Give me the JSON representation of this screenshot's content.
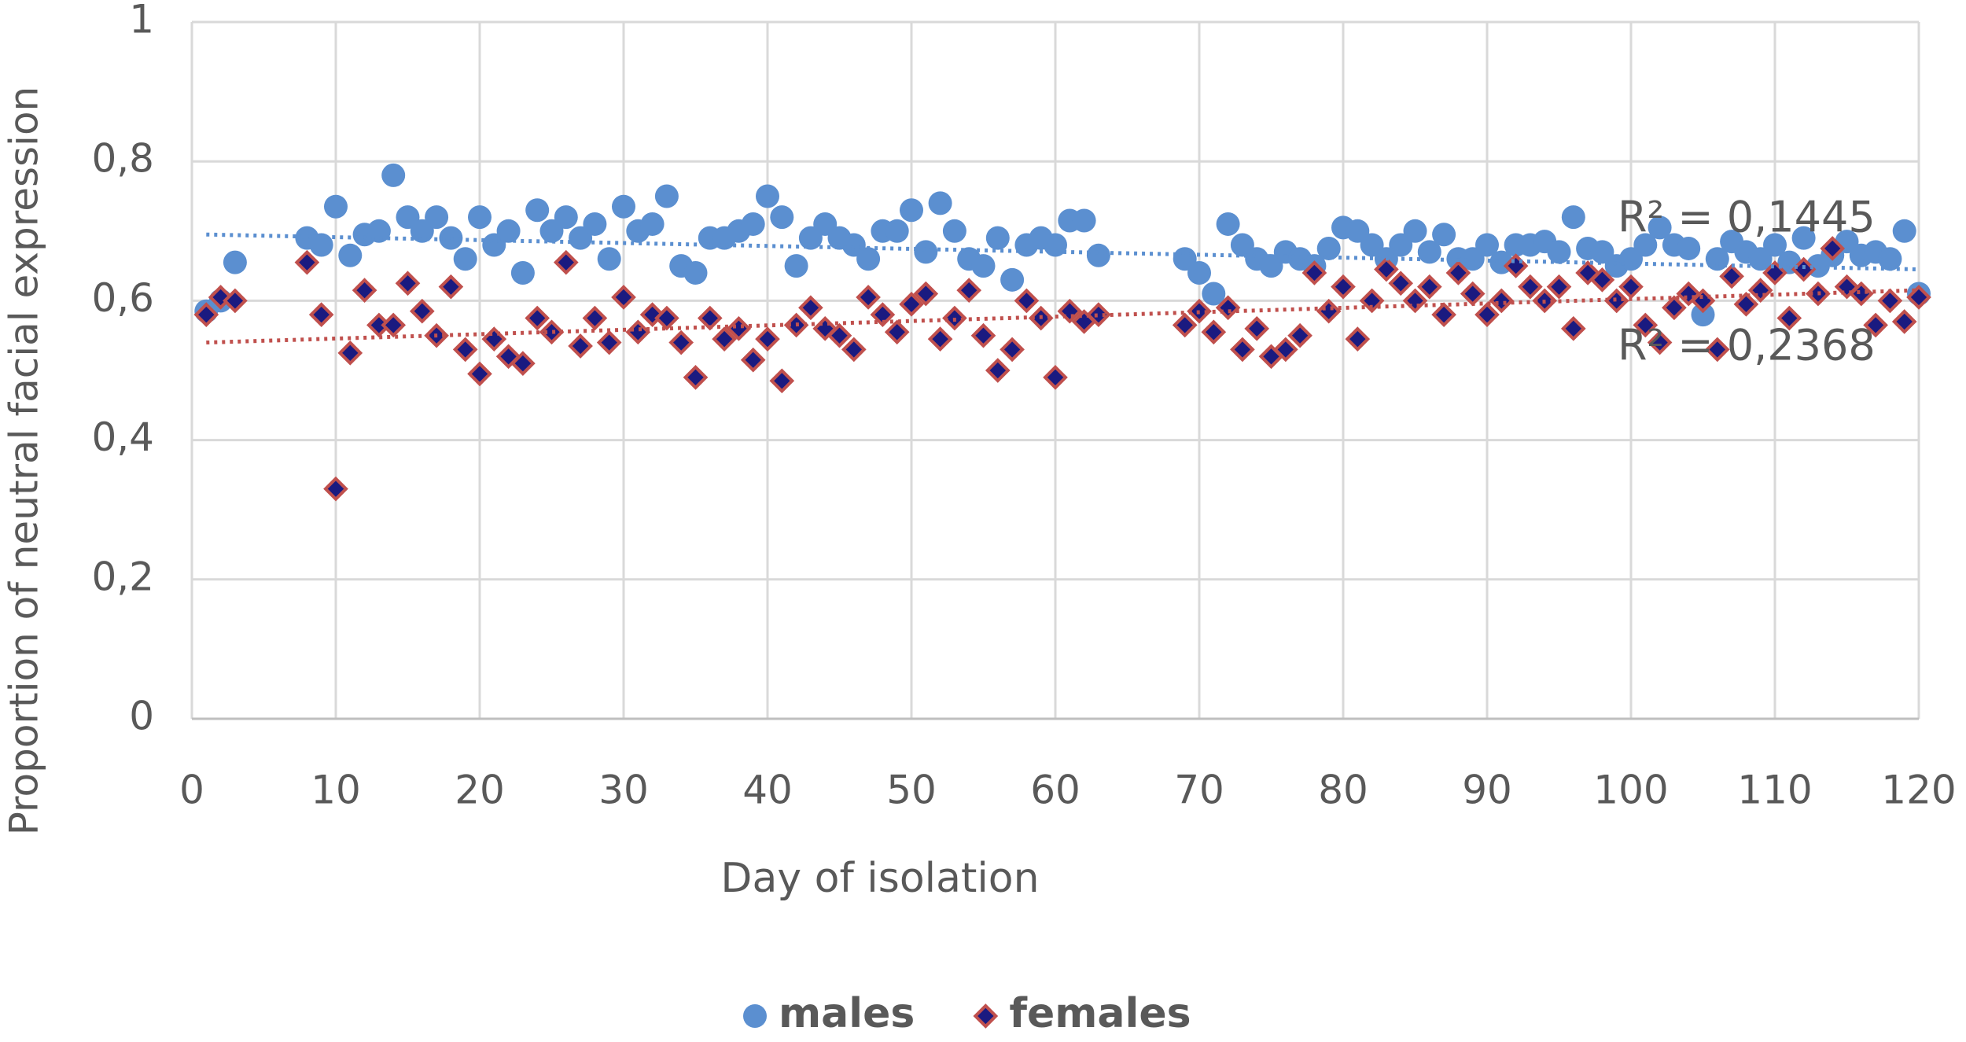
{
  "chart_data": {
    "type": "scatter",
    "x_label": "Day of isolation",
    "y_label": "Proportion of neutral facial expression",
    "xlim": [
      0,
      120
    ],
    "xticks": [
      0,
      10,
      20,
      30,
      40,
      50,
      60,
      70,
      80,
      90,
      100,
      110,
      120
    ],
    "ylim": [
      0,
      1
    ],
    "yticks": [
      0,
      {
        "value": 0.2,
        "label": "0,2"
      },
      {
        "value": 0.4,
        "label": "0,4"
      },
      {
        "value": 0.6,
        "label": "0,6"
      },
      {
        "value": 0.8,
        "label": "0,8"
      },
      1
    ],
    "grid": true,
    "legend": "bottom",
    "x": [
      1,
      2,
      3,
      8,
      9,
      10,
      11,
      12,
      13,
      14,
      15,
      16,
      17,
      18,
      19,
      20,
      21,
      22,
      23,
      24,
      25,
      26,
      27,
      28,
      29,
      30,
      31,
      32,
      33,
      34,
      35,
      36,
      37,
      38,
      39,
      40,
      41,
      42,
      43,
      44,
      45,
      46,
      47,
      48,
      49,
      50,
      51,
      52,
      53,
      54,
      55,
      56,
      57,
      58,
      59,
      60,
      61,
      62,
      63,
      69,
      70,
      71,
      72,
      73,
      74,
      75,
      76,
      77,
      78,
      79,
      80,
      81,
      82,
      83,
      84,
      85,
      86,
      87,
      88,
      89,
      90,
      91,
      92,
      93,
      94,
      95,
      96,
      97,
      98,
      99,
      100,
      101,
      102,
      103,
      104,
      105,
      106,
      107,
      108,
      109,
      110,
      111,
      112,
      113,
      114,
      115,
      116,
      117,
      118,
      119,
      120
    ],
    "series": [
      {
        "name": "males",
        "color": "#5b8fd0",
        "marker": "circle",
        "values": [
          0.585,
          0.6,
          0.655,
          0.69,
          0.68,
          0.735,
          0.665,
          0.695,
          0.7,
          0.78,
          0.72,
          0.7,
          0.72,
          0.69,
          0.66,
          0.72,
          0.68,
          0.7,
          0.64,
          0.73,
          0.7,
          0.72,
          0.69,
          0.71,
          0.66,
          0.735,
          0.7,
          0.71,
          0.75,
          0.65,
          0.64,
          0.69,
          0.69,
          0.7,
          0.71,
          0.75,
          0.72,
          0.65,
          0.69,
          0.71,
          0.69,
          0.68,
          0.66,
          0.7,
          0.7,
          0.73,
          0.67,
          0.74,
          0.7,
          0.66,
          0.65,
          0.69,
          0.63,
          0.68,
          0.69,
          0.68,
          0.715,
          0.715,
          0.665,
          0.66,
          0.64,
          0.61,
          0.71,
          0.68,
          0.66,
          0.65,
          0.67,
          0.66,
          0.65,
          0.675,
          0.705,
          0.7,
          0.68,
          0.66,
          0.68,
          0.7,
          0.67,
          0.695,
          0.66,
          0.66,
          0.68,
          0.655,
          0.68,
          0.68,
          0.685,
          0.67,
          0.72,
          0.675,
          0.67,
          0.65,
          0.66,
          0.68,
          0.705,
          0.68,
          0.675,
          0.58,
          0.66,
          0.685,
          0.67,
          0.66,
          0.68,
          0.655,
          0.69,
          0.65,
          0.665,
          0.685,
          0.665,
          0.67,
          0.66,
          0.7,
          0.61
        ],
        "trendline": {
          "x": [
            1,
            120
          ],
          "values": [
            0.695,
            0.645
          ]
        }
      },
      {
        "name": "females",
        "color": "#1a1a80",
        "edge_color": "#c0504d",
        "marker": "diamond",
        "values": [
          0.58,
          0.605,
          0.6,
          0.655,
          0.58,
          0.33,
          0.525,
          0.615,
          0.565,
          0.565,
          0.625,
          0.585,
          0.55,
          0.62,
          0.53,
          0.495,
          0.545,
          0.52,
          0.51,
          0.575,
          0.555,
          0.655,
          0.535,
          0.575,
          0.54,
          0.605,
          0.555,
          0.58,
          0.575,
          0.54,
          0.49,
          0.575,
          0.545,
          0.56,
          0.515,
          0.545,
          0.485,
          0.565,
          0.59,
          0.56,
          0.55,
          0.53,
          0.605,
          0.58,
          0.555,
          0.595,
          0.61,
          0.545,
          0.575,
          0.615,
          0.55,
          0.5,
          0.53,
          0.6,
          0.575,
          0.49,
          0.585,
          0.57,
          0.58,
          0.565,
          0.585,
          0.555,
          0.59,
          0.53,
          0.56,
          0.52,
          0.53,
          0.55,
          0.64,
          0.585,
          0.62,
          0.545,
          0.6,
          0.645,
          0.625,
          0.6,
          0.62,
          0.58,
          0.64,
          0.61,
          0.58,
          0.6,
          0.65,
          0.62,
          0.6,
          0.62,
          0.56,
          0.64,
          0.63,
          0.6,
          0.62,
          0.565,
          0.54,
          0.59,
          0.61,
          0.6,
          0.53,
          0.635,
          0.595,
          0.615,
          0.64,
          0.575,
          0.645,
          0.61,
          0.675,
          0.62,
          0.61,
          0.565,
          0.6,
          0.57,
          0.605
        ],
        "trendline": {
          "x": [
            1,
            120
          ],
          "values": [
            0.54,
            0.615
          ]
        }
      }
    ],
    "annotations": [
      "R² = 0,1445",
      "R² = 0,2368"
    ]
  }
}
